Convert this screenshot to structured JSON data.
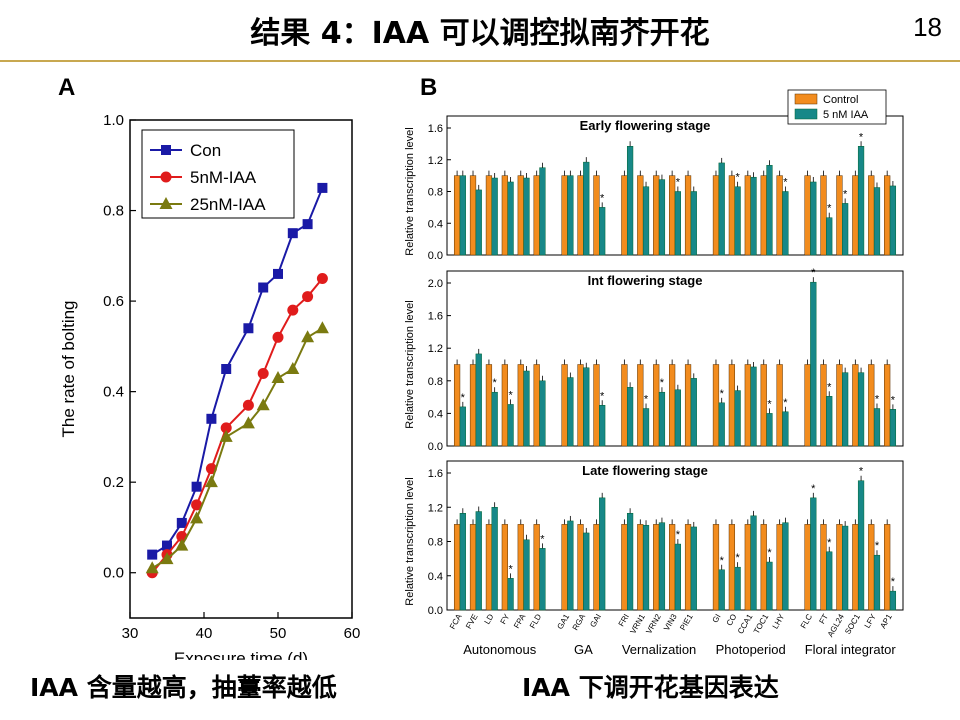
{
  "slide": {
    "title": "结果 4：IAA 可以调控拟南芥开花",
    "page_number": "18",
    "accent_color": "#c8a850"
  },
  "panels": {
    "a_letter": "A",
    "b_letter": "B"
  },
  "captions": {
    "left": "IAA 含量越高，抽薹率越低",
    "right": "IAA 下调开花基因表达"
  },
  "chart_data": [
    {
      "id": "A",
      "type": "line",
      "xlabel": "Exposure time (d)",
      "ylabel": "The rate of bolting",
      "xlim": [
        30,
        60
      ],
      "ylim": [
        -0.1,
        1.0
      ],
      "xticks": [
        "30",
        "40",
        "50",
        "60"
      ],
      "yticks": [
        "0.0",
        "0.2",
        "0.4",
        "0.6",
        "0.8",
        "1.0"
      ],
      "legend_position": "top-left",
      "grid": false,
      "series": [
        {
          "name": "Con",
          "color": "#1a1aa6",
          "marker": "square",
          "x": [
            33,
            35,
            37,
            39,
            41,
            43,
            46,
            48,
            50,
            52,
            54,
            56
          ],
          "y": [
            0.04,
            0.06,
            0.11,
            0.19,
            0.34,
            0.45,
            0.54,
            0.63,
            0.66,
            0.75,
            0.77,
            0.85
          ]
        },
        {
          "name": "5nM-IAA",
          "color": "#e01c1c",
          "marker": "circle",
          "x": [
            33,
            35,
            37,
            39,
            41,
            43,
            46,
            48,
            50,
            52,
            54,
            56
          ],
          "y": [
            0.0,
            0.04,
            0.08,
            0.15,
            0.23,
            0.32,
            0.37,
            0.44,
            0.52,
            0.58,
            0.61,
            0.65
          ]
        },
        {
          "name": "25nM-IAA",
          "color": "#7a7a10",
          "marker": "triangle",
          "x": [
            33,
            35,
            37,
            39,
            41,
            43,
            46,
            48,
            50,
            52,
            54,
            56
          ],
          "y": [
            0.01,
            0.03,
            0.06,
            0.12,
            0.2,
            0.3,
            0.33,
            0.37,
            0.43,
            0.45,
            0.52,
            0.54
          ]
        }
      ]
    },
    {
      "id": "B",
      "type": "bar",
      "ylabel": "Relative transcription level",
      "legend_position": "top-right",
      "series_names": [
        "Control",
        "5 nM IAA"
      ],
      "colors": {
        "control": "#f28c1e",
        "treatment": "#178888"
      },
      "genes": [
        "FCA",
        "FVE",
        "LD",
        "FY",
        "FPA",
        "FLD",
        "GA1",
        "RGA",
        "GAI",
        "FRI",
        "VRN1",
        "VRN2",
        "VIN3",
        "PIE1",
        "GI",
        "CO",
        "CCA1",
        "TOC1",
        "LHY",
        "FLC",
        "FT",
        "AGL24",
        "SOC1",
        "LFY",
        "AP1"
      ],
      "groups": [
        {
          "label": "Autonomous",
          "count": 6
        },
        {
          "label": "GA",
          "count": 3
        },
        {
          "label": "Vernalization",
          "count": 5
        },
        {
          "label": "Photoperiod",
          "count": 5
        },
        {
          "label": "Floral integrator",
          "count": 6
        }
      ],
      "stages": [
        {
          "title": "Early flowering stage",
          "ylim": [
            0,
            1.6
          ],
          "yticks": [
            "0.0",
            "0.4",
            "0.8",
            "1.2",
            "1.6"
          ],
          "control": [
            1,
            1,
            1,
            1,
            1,
            1,
            1,
            1,
            1,
            1,
            1,
            1,
            1,
            1,
            1,
            1,
            1,
            1,
            1,
            1,
            1,
            1,
            1,
            1,
            1
          ],
          "treatment": [
            1.0,
            0.82,
            0.97,
            0.92,
            0.97,
            1.1,
            1.0,
            1.17,
            0.6,
            1.37,
            0.86,
            0.95,
            0.8,
            0.8,
            1.16,
            0.86,
            0.98,
            1.13,
            0.8,
            0.92,
            0.47,
            0.65,
            1.37,
            0.85,
            0.87
          ],
          "significant": [
            false,
            false,
            false,
            false,
            false,
            false,
            false,
            false,
            true,
            false,
            false,
            false,
            true,
            false,
            false,
            true,
            false,
            false,
            true,
            false,
            true,
            true,
            true,
            false,
            false
          ]
        },
        {
          "title": "Int flowering stage",
          "ylim": [
            0,
            2.0
          ],
          "yticks": [
            "0.0",
            "0.4",
            "0.8",
            "1.2",
            "1.6",
            "2.0"
          ],
          "control": [
            1,
            1,
            1,
            1,
            1,
            1,
            1,
            1,
            1,
            1,
            1,
            1,
            1,
            1,
            1,
            1,
            1,
            1,
            1,
            1,
            1,
            1,
            1,
            1,
            1
          ],
          "treatment": [
            0.48,
            1.13,
            0.66,
            0.51,
            0.92,
            0.8,
            0.84,
            0.96,
            0.5,
            0.72,
            0.46,
            0.66,
            0.69,
            0.83,
            0.53,
            0.68,
            0.97,
            0.4,
            0.42,
            2.01,
            0.61,
            0.9,
            0.9,
            0.46,
            0.45
          ],
          "significant": [
            true,
            false,
            true,
            true,
            false,
            false,
            false,
            false,
            true,
            false,
            true,
            true,
            false,
            false,
            true,
            false,
            false,
            true,
            true,
            true,
            true,
            false,
            false,
            true,
            true
          ]
        },
        {
          "title": "Late flowering stage",
          "ylim": [
            0,
            1.6
          ],
          "yticks": [
            "0.0",
            "0.4",
            "0.8",
            "1.2",
            "1.6"
          ],
          "control": [
            1,
            1,
            1,
            1,
            1,
            1,
            1,
            1,
            1,
            1,
            1,
            1,
            1,
            1,
            1,
            1,
            1,
            1,
            1,
            1,
            1,
            1,
            1,
            1,
            1
          ],
          "treatment": [
            1.13,
            1.15,
            1.2,
            0.37,
            0.82,
            0.72,
            1.04,
            0.9,
            1.31,
            1.13,
            0.99,
            1.02,
            0.77,
            0.97,
            0.47,
            0.5,
            1.1,
            0.56,
            1.02,
            1.31,
            0.68,
            0.98,
            1.51,
            0.64,
            0.22
          ],
          "significant": [
            false,
            false,
            false,
            true,
            false,
            true,
            false,
            false,
            false,
            false,
            false,
            false,
            true,
            false,
            true,
            true,
            false,
            true,
            false,
            true,
            true,
            false,
            true,
            true,
            true
          ]
        }
      ]
    }
  ]
}
